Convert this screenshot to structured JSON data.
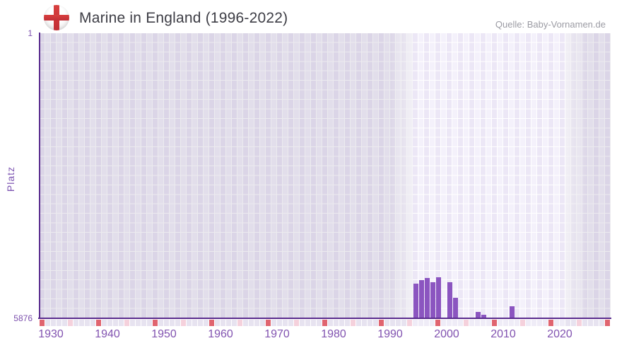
{
  "header": {
    "flag_icon": "england-flag",
    "title": "Marine in England (1996-2022)",
    "source": "Quelle: Baby-Vornamen.de"
  },
  "chart_data": {
    "type": "bar",
    "title": "Marine in England (1996-2022)",
    "xlabel": "",
    "ylabel": "Platz",
    "y_axis": {
      "min": 1,
      "max": 5876,
      "inverted": true,
      "tick_top": "1",
      "tick_bottom": "5876"
    },
    "x_axis": {
      "first_year": 1930,
      "last_year": 2030,
      "tick_labels": [
        1930,
        1940,
        1950,
        1960,
        1970,
        1980,
        1990,
        2000,
        2010,
        2020
      ]
    },
    "highlight_years": {
      "from": 1996,
      "to": 2022
    },
    "series": [
      {
        "name": "Platz",
        "points": [
          {
            "year": 1996,
            "platz": 5160
          },
          {
            "year": 1997,
            "platz": 5090
          },
          {
            "year": 1998,
            "platz": 5045
          },
          {
            "year": 1999,
            "platz": 5130
          },
          {
            "year": 2000,
            "platz": 5025
          },
          {
            "year": 2002,
            "platz": 5130
          },
          {
            "year": 2003,
            "platz": 5455
          },
          {
            "year": 2007,
            "platz": 5745
          },
          {
            "year": 2008,
            "platz": 5805
          },
          {
            "year": 2013,
            "platz": 5635
          }
        ]
      }
    ],
    "colors": {
      "bar": "#8b55c0",
      "axis_line": "#5a2c8e",
      "tick_label": "#8152b0",
      "y_tick_label": "#7d51ae",
      "ylabel_color": "#7d55b2",
      "decade_tick_cell": "#e0646f",
      "half_decade_tick_cell": "#f5d1dc",
      "title_color": "#3e3e46",
      "source_color": "#9b9ba3"
    }
  }
}
